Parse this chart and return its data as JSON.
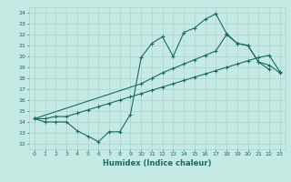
{
  "bg_color": "#c5eae4",
  "grid_color": "#aad4cc",
  "line_color": "#1a6b5a",
  "xlim": [
    -0.5,
    23.5
  ],
  "ylim": [
    11.5,
    24.5
  ],
  "yticks": [
    12,
    13,
    14,
    15,
    16,
    17,
    18,
    19,
    20,
    21,
    22,
    23,
    24
  ],
  "xticks": [
    0,
    1,
    2,
    3,
    4,
    5,
    6,
    7,
    8,
    9,
    10,
    11,
    12,
    13,
    14,
    15,
    16,
    17,
    18,
    19,
    20,
    21,
    22,
    23
  ],
  "xlabel": "Humidex (Indice chaleur)",
  "line1_x": [
    0,
    1,
    2,
    3,
    4,
    5,
    6,
    7,
    8,
    9,
    10,
    11,
    12,
    13,
    14,
    15,
    16,
    17,
    18,
    19,
    20,
    21,
    22
  ],
  "line1_y": [
    14.3,
    14.0,
    14.0,
    14.0,
    13.2,
    12.7,
    12.2,
    13.1,
    13.1,
    14.7,
    19.9,
    21.2,
    21.8,
    20.0,
    22.2,
    22.6,
    23.4,
    23.9,
    22.1,
    21.2,
    21.0,
    19.5,
    18.8
  ],
  "line2_x": [
    0,
    10,
    11,
    12,
    13,
    14,
    15,
    16,
    17,
    18,
    19,
    20,
    21,
    22,
    23
  ],
  "line2_y": [
    14.3,
    17.5,
    18.0,
    18.5,
    18.9,
    19.3,
    19.7,
    20.1,
    20.5,
    22.0,
    21.2,
    21.0,
    19.5,
    19.2,
    18.5
  ],
  "line3_x": [
    0,
    1,
    2,
    3,
    4,
    5,
    6,
    7,
    8,
    9,
    10,
    11,
    12,
    13,
    14,
    15,
    16,
    17,
    18,
    19,
    20,
    21,
    22,
    23
  ],
  "line3_y": [
    14.3,
    14.3,
    14.5,
    14.5,
    14.8,
    15.1,
    15.4,
    15.7,
    16.0,
    16.3,
    16.6,
    16.9,
    17.2,
    17.5,
    17.8,
    18.1,
    18.4,
    18.7,
    19.0,
    19.3,
    19.6,
    19.9,
    20.1,
    18.6
  ]
}
